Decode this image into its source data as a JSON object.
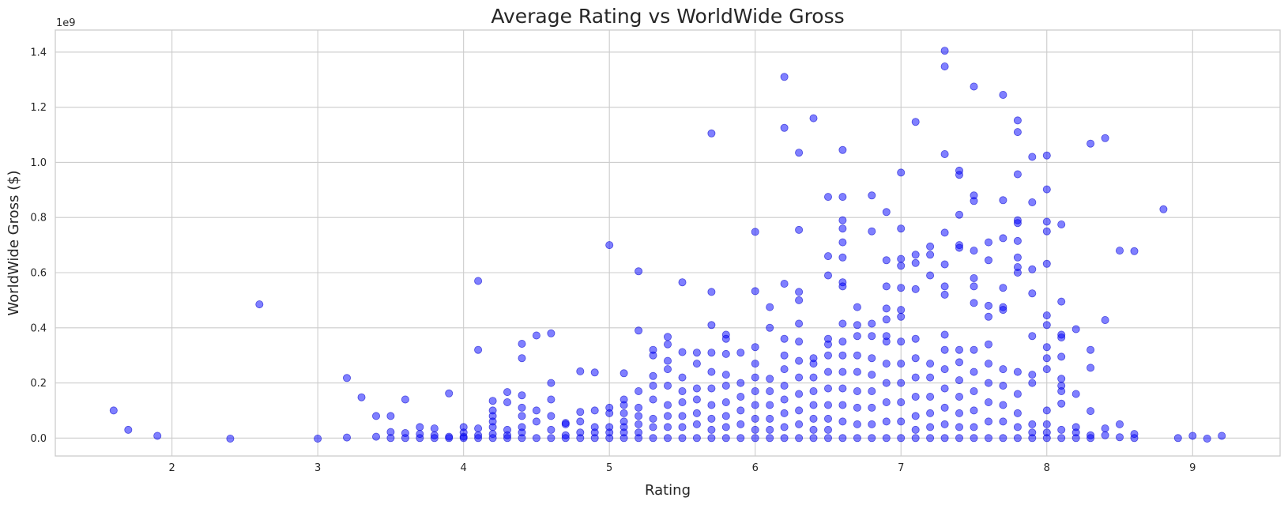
{
  "chart_data": {
    "type": "scatter",
    "title": "Average Rating vs WorldWide Gross",
    "xlabel": "Rating",
    "ylabel": "WorldWide Gross ($)",
    "y_offset_label": "1e9",
    "xlim": [
      1.2,
      9.6
    ],
    "ylim": [
      -0.065,
      1.48
    ],
    "xticks": [
      2,
      3,
      4,
      5,
      6,
      7,
      8,
      9
    ],
    "xtick_labels": [
      "2",
      "3",
      "4",
      "5",
      "6",
      "7",
      "8",
      "9"
    ],
    "yticks": [
      0.0,
      0.2,
      0.4,
      0.6,
      0.8,
      1.0,
      1.2,
      1.4
    ],
    "ytick_labels": [
      "0.0",
      "0.2",
      "0.4",
      "0.6",
      "0.8",
      "1.0",
      "1.2",
      "1.4"
    ],
    "y_unit_scale": 1000000000,
    "grid": true,
    "color": "#0000ff",
    "alpha": 0.5,
    "points": [
      [
        1.6,
        0.1
      ],
      [
        1.7,
        0.03
      ],
      [
        1.9,
        0.008
      ],
      [
        2.4,
        -0.002
      ],
      [
        2.6,
        0.485
      ],
      [
        3.0,
        -0.002
      ],
      [
        3.2,
        0.218
      ],
      [
        3.2,
        0.002
      ],
      [
        3.3,
        0.148
      ],
      [
        3.4,
        0.08
      ],
      [
        3.4,
        0.005
      ],
      [
        3.5,
        0.08
      ],
      [
        3.5,
        0.022
      ],
      [
        3.5,
        0.0
      ],
      [
        3.6,
        0.14
      ],
      [
        3.6,
        0.018
      ],
      [
        3.6,
        0.0
      ],
      [
        3.7,
        0.04
      ],
      [
        3.7,
        0.015
      ],
      [
        3.7,
        0.0
      ],
      [
        3.8,
        0.035
      ],
      [
        3.8,
        0.01
      ],
      [
        3.8,
        0.0
      ],
      [
        3.9,
        0.162
      ],
      [
        3.9,
        0.005
      ],
      [
        3.9,
        0.0
      ],
      [
        4.0,
        0.04
      ],
      [
        4.0,
        0.02
      ],
      [
        4.0,
        0.005
      ],
      [
        4.0,
        0.0
      ],
      [
        4.1,
        0.57
      ],
      [
        4.1,
        0.32
      ],
      [
        4.1,
        0.035
      ],
      [
        4.1,
        0.01
      ],
      [
        4.1,
        0.0
      ],
      [
        4.2,
        0.135
      ],
      [
        4.2,
        0.1
      ],
      [
        4.2,
        0.08
      ],
      [
        4.2,
        0.06
      ],
      [
        4.2,
        0.04
      ],
      [
        4.2,
        0.015
      ],
      [
        4.2,
        0.0
      ],
      [
        4.3,
        0.167
      ],
      [
        4.3,
        0.13
      ],
      [
        4.3,
        0.03
      ],
      [
        4.3,
        0.01
      ],
      [
        4.3,
        0.0
      ],
      [
        4.4,
        0.342
      ],
      [
        4.4,
        0.29
      ],
      [
        4.4,
        0.155
      ],
      [
        4.4,
        0.11
      ],
      [
        4.4,
        0.08
      ],
      [
        4.4,
        0.04
      ],
      [
        4.4,
        0.02
      ],
      [
        4.4,
        0.0
      ],
      [
        4.5,
        0.372
      ],
      [
        4.5,
        0.1
      ],
      [
        4.5,
        0.06
      ],
      [
        4.5,
        0.0
      ],
      [
        4.6,
        0.38
      ],
      [
        4.6,
        0.2
      ],
      [
        4.6,
        0.14
      ],
      [
        4.6,
        0.08
      ],
      [
        4.6,
        0.03
      ],
      [
        4.6,
        0.0
      ],
      [
        4.7,
        0.055
      ],
      [
        4.7,
        0.05
      ],
      [
        4.7,
        0.01
      ],
      [
        4.7,
        0.0
      ],
      [
        4.8,
        0.242
      ],
      [
        4.8,
        0.095
      ],
      [
        4.8,
        0.06
      ],
      [
        4.8,
        0.02
      ],
      [
        4.8,
        0.0
      ],
      [
        4.9,
        0.238
      ],
      [
        4.9,
        0.1
      ],
      [
        4.9,
        0.04
      ],
      [
        4.9,
        0.02
      ],
      [
        4.9,
        0.0
      ],
      [
        5.0,
        0.7
      ],
      [
        5.0,
        0.11
      ],
      [
        5.0,
        0.09
      ],
      [
        5.0,
        0.04
      ],
      [
        5.0,
        0.02
      ],
      [
        5.0,
        0.0
      ],
      [
        5.1,
        0.235
      ],
      [
        5.1,
        0.14
      ],
      [
        5.1,
        0.12
      ],
      [
        5.1,
        0.09
      ],
      [
        5.1,
        0.06
      ],
      [
        5.1,
        0.04
      ],
      [
        5.1,
        0.02
      ],
      [
        5.1,
        0.0
      ],
      [
        5.2,
        0.605
      ],
      [
        5.2,
        0.39
      ],
      [
        5.2,
        0.17
      ],
      [
        5.2,
        0.11
      ],
      [
        5.2,
        0.08
      ],
      [
        5.2,
        0.05
      ],
      [
        5.2,
        0.02
      ],
      [
        5.2,
        0.0
      ],
      [
        5.3,
        0.32
      ],
      [
        5.3,
        0.3
      ],
      [
        5.3,
        0.225
      ],
      [
        5.3,
        0.19
      ],
      [
        5.3,
        0.14
      ],
      [
        5.3,
        0.07
      ],
      [
        5.3,
        0.04
      ],
      [
        5.3,
        0.0
      ],
      [
        5.4,
        0.367
      ],
      [
        5.4,
        0.34
      ],
      [
        5.4,
        0.28
      ],
      [
        5.4,
        0.25
      ],
      [
        5.4,
        0.19
      ],
      [
        5.4,
        0.12
      ],
      [
        5.4,
        0.08
      ],
      [
        5.4,
        0.04
      ],
      [
        5.4,
        0.0
      ],
      [
        5.5,
        0.565
      ],
      [
        5.5,
        0.312
      ],
      [
        5.5,
        0.22
      ],
      [
        5.5,
        0.17
      ],
      [
        5.5,
        0.13
      ],
      [
        5.5,
        0.08
      ],
      [
        5.5,
        0.04
      ],
      [
        5.5,
        0.0
      ],
      [
        5.6,
        0.31
      ],
      [
        5.6,
        0.27
      ],
      [
        5.6,
        0.18
      ],
      [
        5.6,
        0.14
      ],
      [
        5.6,
        0.09
      ],
      [
        5.6,
        0.05
      ],
      [
        5.6,
        0.0
      ],
      [
        5.7,
        1.105
      ],
      [
        5.7,
        0.53
      ],
      [
        5.7,
        0.41
      ],
      [
        5.7,
        0.31
      ],
      [
        5.7,
        0.24
      ],
      [
        5.7,
        0.18
      ],
      [
        5.7,
        0.12
      ],
      [
        5.7,
        0.07
      ],
      [
        5.7,
        0.03
      ],
      [
        5.7,
        0.0
      ],
      [
        5.8,
        0.375
      ],
      [
        5.8,
        0.36
      ],
      [
        5.8,
        0.305
      ],
      [
        5.8,
        0.23
      ],
      [
        5.8,
        0.19
      ],
      [
        5.8,
        0.13
      ],
      [
        5.8,
        0.08
      ],
      [
        5.8,
        0.04
      ],
      [
        5.8,
        0.0
      ],
      [
        5.9,
        0.31
      ],
      [
        5.9,
        0.2
      ],
      [
        5.9,
        0.15
      ],
      [
        5.9,
        0.1
      ],
      [
        5.9,
        0.05
      ],
      [
        5.9,
        0.0
      ],
      [
        6.0,
        0.748
      ],
      [
        6.0,
        0.533
      ],
      [
        6.0,
        0.33
      ],
      [
        6.0,
        0.27
      ],
      [
        6.0,
        0.22
      ],
      [
        6.0,
        0.17
      ],
      [
        6.0,
        0.12
      ],
      [
        6.0,
        0.07
      ],
      [
        6.0,
        0.03
      ],
      [
        6.0,
        0.0
      ],
      [
        6.1,
        0.475
      ],
      [
        6.1,
        0.4
      ],
      [
        6.1,
        0.215
      ],
      [
        6.1,
        0.17
      ],
      [
        6.1,
        0.12
      ],
      [
        6.1,
        0.07
      ],
      [
        6.1,
        0.03
      ],
      [
        6.1,
        0.0
      ],
      [
        6.2,
        1.31
      ],
      [
        6.2,
        1.125
      ],
      [
        6.2,
        0.56
      ],
      [
        6.2,
        0.36
      ],
      [
        6.2,
        0.3
      ],
      [
        6.2,
        0.25
      ],
      [
        6.2,
        0.19
      ],
      [
        6.2,
        0.14
      ],
      [
        6.2,
        0.09
      ],
      [
        6.2,
        0.04
      ],
      [
        6.2,
        0.0
      ],
      [
        6.3,
        1.035
      ],
      [
        6.3,
        0.755
      ],
      [
        6.3,
        0.53
      ],
      [
        6.3,
        0.5
      ],
      [
        6.3,
        0.415
      ],
      [
        6.3,
        0.35
      ],
      [
        6.3,
        0.28
      ],
      [
        6.3,
        0.22
      ],
      [
        6.3,
        0.16
      ],
      [
        6.3,
        0.1
      ],
      [
        6.3,
        0.05
      ],
      [
        6.3,
        0.0
      ],
      [
        6.4,
        1.16
      ],
      [
        6.4,
        0.29
      ],
      [
        6.4,
        0.27
      ],
      [
        6.4,
        0.22
      ],
      [
        6.4,
        0.17
      ],
      [
        6.4,
        0.12
      ],
      [
        6.4,
        0.07
      ],
      [
        6.4,
        0.03
      ],
      [
        6.4,
        0.0
      ],
      [
        6.5,
        0.875
      ],
      [
        6.5,
        0.66
      ],
      [
        6.5,
        0.59
      ],
      [
        6.5,
        0.36
      ],
      [
        6.5,
        0.34
      ],
      [
        6.5,
        0.3
      ],
      [
        6.5,
        0.24
      ],
      [
        6.5,
        0.18
      ],
      [
        6.5,
        0.12
      ],
      [
        6.5,
        0.07
      ],
      [
        6.5,
        0.03
      ],
      [
        6.5,
        0.0
      ],
      [
        6.6,
        1.045
      ],
      [
        6.6,
        0.875
      ],
      [
        6.6,
        0.79
      ],
      [
        6.6,
        0.76
      ],
      [
        6.6,
        0.71
      ],
      [
        6.6,
        0.655
      ],
      [
        6.6,
        0.565
      ],
      [
        6.6,
        0.55
      ],
      [
        6.6,
        0.415
      ],
      [
        6.6,
        0.35
      ],
      [
        6.6,
        0.3
      ],
      [
        6.6,
        0.24
      ],
      [
        6.6,
        0.18
      ],
      [
        6.6,
        0.12
      ],
      [
        6.6,
        0.06
      ],
      [
        6.6,
        0.0
      ],
      [
        6.7,
        0.475
      ],
      [
        6.7,
        0.41
      ],
      [
        6.7,
        0.37
      ],
      [
        6.7,
        0.3
      ],
      [
        6.7,
        0.24
      ],
      [
        6.7,
        0.17
      ],
      [
        6.7,
        0.11
      ],
      [
        6.7,
        0.05
      ],
      [
        6.7,
        0.0
      ],
      [
        6.8,
        0.88
      ],
      [
        6.8,
        0.75
      ],
      [
        6.8,
        0.415
      ],
      [
        6.8,
        0.37
      ],
      [
        6.8,
        0.29
      ],
      [
        6.8,
        0.23
      ],
      [
        6.8,
        0.17
      ],
      [
        6.8,
        0.11
      ],
      [
        6.8,
        0.05
      ],
      [
        6.8,
        0.0
      ],
      [
        6.9,
        0.82
      ],
      [
        6.9,
        0.645
      ],
      [
        6.9,
        0.55
      ],
      [
        6.9,
        0.47
      ],
      [
        6.9,
        0.43
      ],
      [
        6.9,
        0.37
      ],
      [
        6.9,
        0.35
      ],
      [
        6.9,
        0.27
      ],
      [
        6.9,
        0.2
      ],
      [
        6.9,
        0.13
      ],
      [
        6.9,
        0.06
      ],
      [
        6.9,
        0.0
      ],
      [
        7.0,
        0.963
      ],
      [
        7.0,
        0.76
      ],
      [
        7.0,
        0.65
      ],
      [
        7.0,
        0.625
      ],
      [
        7.0,
        0.545
      ],
      [
        7.0,
        0.465
      ],
      [
        7.0,
        0.44
      ],
      [
        7.0,
        0.35
      ],
      [
        7.0,
        0.27
      ],
      [
        7.0,
        0.2
      ],
      [
        7.0,
        0.13
      ],
      [
        7.0,
        0.06
      ],
      [
        7.0,
        0.0
      ],
      [
        7.1,
        1.147
      ],
      [
        7.1,
        0.665
      ],
      [
        7.1,
        0.635
      ],
      [
        7.1,
        0.54
      ],
      [
        7.1,
        0.36
      ],
      [
        7.1,
        0.29
      ],
      [
        7.1,
        0.22
      ],
      [
        7.1,
        0.15
      ],
      [
        7.1,
        0.08
      ],
      [
        7.1,
        0.03
      ],
      [
        7.1,
        0.0
      ],
      [
        7.2,
        0.695
      ],
      [
        7.2,
        0.665
      ],
      [
        7.2,
        0.59
      ],
      [
        7.2,
        0.27
      ],
      [
        7.2,
        0.22
      ],
      [
        7.2,
        0.15
      ],
      [
        7.2,
        0.09
      ],
      [
        7.2,
        0.04
      ],
      [
        7.2,
        0.0
      ],
      [
        7.3,
        1.405
      ],
      [
        7.3,
        1.348
      ],
      [
        7.3,
        1.03
      ],
      [
        7.3,
        0.745
      ],
      [
        7.3,
        0.63
      ],
      [
        7.3,
        0.55
      ],
      [
        7.3,
        0.52
      ],
      [
        7.3,
        0.375
      ],
      [
        7.3,
        0.32
      ],
      [
        7.3,
        0.25
      ],
      [
        7.3,
        0.18
      ],
      [
        7.3,
        0.11
      ],
      [
        7.3,
        0.05
      ],
      [
        7.3,
        0.0
      ],
      [
        7.4,
        0.97
      ],
      [
        7.4,
        0.955
      ],
      [
        7.4,
        0.81
      ],
      [
        7.4,
        0.7
      ],
      [
        7.4,
        0.69
      ],
      [
        7.4,
        0.32
      ],
      [
        7.4,
        0.275
      ],
      [
        7.4,
        0.21
      ],
      [
        7.4,
        0.15
      ],
      [
        7.4,
        0.09
      ],
      [
        7.4,
        0.04
      ],
      [
        7.4,
        0.0
      ],
      [
        7.5,
        1.275
      ],
      [
        7.5,
        0.88
      ],
      [
        7.5,
        0.86
      ],
      [
        7.5,
        0.68
      ],
      [
        7.5,
        0.58
      ],
      [
        7.5,
        0.55
      ],
      [
        7.5,
        0.49
      ],
      [
        7.5,
        0.32
      ],
      [
        7.5,
        0.24
      ],
      [
        7.5,
        0.17
      ],
      [
        7.5,
        0.1
      ],
      [
        7.5,
        0.04
      ],
      [
        7.5,
        0.0
      ],
      [
        7.6,
        0.71
      ],
      [
        7.6,
        0.645
      ],
      [
        7.6,
        0.48
      ],
      [
        7.6,
        0.44
      ],
      [
        7.6,
        0.34
      ],
      [
        7.6,
        0.27
      ],
      [
        7.6,
        0.2
      ],
      [
        7.6,
        0.13
      ],
      [
        7.6,
        0.06
      ],
      [
        7.6,
        0.0
      ],
      [
        7.7,
        1.245
      ],
      [
        7.7,
        0.863
      ],
      [
        7.7,
        0.725
      ],
      [
        7.7,
        0.545
      ],
      [
        7.7,
        0.475
      ],
      [
        7.7,
        0.465
      ],
      [
        7.7,
        0.25
      ],
      [
        7.7,
        0.19
      ],
      [
        7.7,
        0.12
      ],
      [
        7.7,
        0.06
      ],
      [
        7.7,
        0.0
      ],
      [
        7.8,
        1.152
      ],
      [
        7.8,
        1.11
      ],
      [
        7.8,
        0.957
      ],
      [
        7.8,
        0.79
      ],
      [
        7.8,
        0.78
      ],
      [
        7.8,
        0.715
      ],
      [
        7.8,
        0.655
      ],
      [
        7.8,
        0.62
      ],
      [
        7.8,
        0.6
      ],
      [
        7.8,
        0.24
      ],
      [
        7.8,
        0.16
      ],
      [
        7.8,
        0.09
      ],
      [
        7.8,
        0.04
      ],
      [
        7.8,
        0.0
      ],
      [
        7.9,
        1.02
      ],
      [
        7.9,
        0.855
      ],
      [
        7.9,
        0.612
      ],
      [
        7.9,
        0.525
      ],
      [
        7.9,
        0.37
      ],
      [
        7.9,
        0.23
      ],
      [
        7.9,
        0.2
      ],
      [
        7.9,
        0.05
      ],
      [
        7.9,
        0.02
      ],
      [
        7.9,
        0.0
      ],
      [
        8.0,
        1.025
      ],
      [
        8.0,
        0.902
      ],
      [
        8.0,
        0.785
      ],
      [
        8.0,
        0.75
      ],
      [
        8.0,
        0.632
      ],
      [
        8.0,
        0.445
      ],
      [
        8.0,
        0.41
      ],
      [
        8.0,
        0.33
      ],
      [
        8.0,
        0.29
      ],
      [
        8.0,
        0.25
      ],
      [
        8.0,
        0.1
      ],
      [
        8.0,
        0.05
      ],
      [
        8.0,
        0.02
      ],
      [
        8.0,
        0.0
      ],
      [
        8.1,
        0.775
      ],
      [
        8.1,
        0.495
      ],
      [
        8.1,
        0.375
      ],
      [
        8.1,
        0.365
      ],
      [
        8.1,
        0.295
      ],
      [
        8.1,
        0.215
      ],
      [
        8.1,
        0.19
      ],
      [
        8.1,
        0.17
      ],
      [
        8.1,
        0.125
      ],
      [
        8.1,
        0.03
      ],
      [
        8.1,
        0.0
      ],
      [
        8.2,
        0.395
      ],
      [
        8.2,
        0.16
      ],
      [
        8.2,
        0.04
      ],
      [
        8.2,
        0.02
      ],
      [
        8.2,
        0.0
      ],
      [
        8.3,
        1.068
      ],
      [
        8.3,
        0.32
      ],
      [
        8.3,
        0.255
      ],
      [
        8.3,
        0.098
      ],
      [
        8.3,
        0.01
      ],
      [
        8.3,
        0.0
      ],
      [
        8.4,
        1.088
      ],
      [
        8.4,
        0.428
      ],
      [
        8.4,
        0.035
      ],
      [
        8.4,
        0.01
      ],
      [
        8.5,
        0.68
      ],
      [
        8.5,
        0.05
      ],
      [
        8.5,
        0.003
      ],
      [
        8.6,
        0.678
      ],
      [
        8.6,
        0.015
      ],
      [
        8.6,
        0.0
      ],
      [
        8.8,
        0.83
      ],
      [
        8.9,
        0.0
      ],
      [
        9.0,
        0.008
      ],
      [
        9.1,
        -0.002
      ],
      [
        9.2,
        0.008
      ]
    ]
  }
}
